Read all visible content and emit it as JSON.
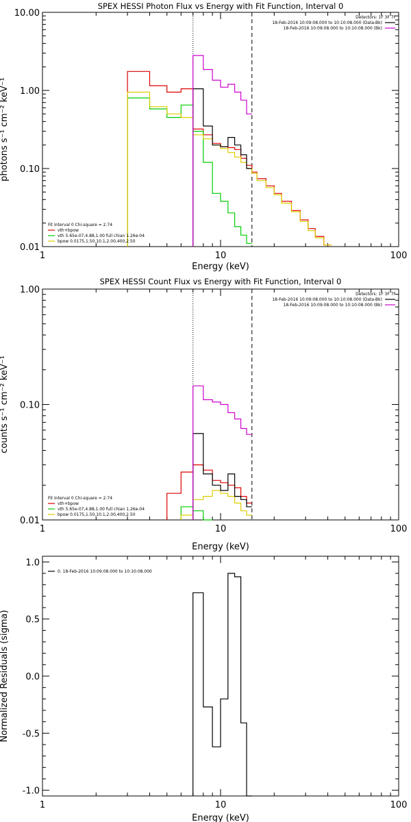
{
  "colors": {
    "data_bk": "#000000",
    "data_bk2": "#cc00cc",
    "vth_bpow": "#dd0000",
    "vth": "#00cc00",
    "bpow": "#ddcc00",
    "fit_range_marker": "#000000"
  },
  "chart_data": [
    {
      "type": "line",
      "title": "SPEX HESSI Photon Flux vs Energy with Fit Function, Interval 0",
      "xlabel": "Energy (keV)",
      "ylabel": "photons s⁻¹ cm⁻² keV⁻¹",
      "xscale": "log",
      "yscale": "log",
      "xlim": [
        1,
        100
      ],
      "ylim": [
        0.01,
        10
      ],
      "xticks": [
        1,
        10,
        100
      ],
      "xtick_labels": [
        "1",
        "10",
        "100"
      ],
      "yticks": [
        0.01,
        0.1,
        1,
        10
      ],
      "ytick_labels": [
        "0.01",
        "0.10",
        "1.00",
        "10.00"
      ],
      "vlines": [
        {
          "x": 7.0,
          "style": "dotted"
        },
        {
          "x": 15.0,
          "style": "dashed"
        }
      ],
      "legend_top": {
        "position": "top-right",
        "header": "Detectors: 1F 3F 7F",
        "entries": [
          {
            "label": "18-Feb-2016 10:09:08.000 to 10:10:08.000 (Data-Bk)",
            "color_key": "data_bk"
          },
          {
            "label": "18-Feb-2016 10:09:08.000 to 10:10:08.000 (Bk)",
            "color_key": "data_bk2"
          }
        ]
      },
      "legend_bottom": {
        "position": "bottom-left",
        "header": "Fit Interval 0   Chi-square = 2.74",
        "entries": [
          {
            "label": "vth+bpow",
            "color_key": "vth_bpow"
          },
          {
            "label": "vth 5.65e-07,4.88,1.00  full chian 1.26e-04",
            "color_key": "vth"
          },
          {
            "label": "bpow 0.0175,1.50,10.1,2.00,400,2.50",
            "color_key": "bpow"
          }
        ]
      },
      "series": [
        {
          "color_key": "vth_bpow",
          "start_edge": 3.0,
          "edges": [
            3.0,
            4.0,
            5.0,
            6.0,
            7.0,
            8.0,
            9.0,
            10.0,
            11.0,
            12.0,
            13.0,
            14.0,
            15.0,
            16.0,
            18.0,
            20.0,
            22.0,
            25.0,
            28.0,
            31.0,
            34.0,
            38.0,
            42.0
          ],
          "values": [
            1.75,
            1.15,
            0.95,
            1.05,
            0.32,
            0.27,
            0.21,
            0.19,
            0.185,
            0.175,
            0.135,
            0.11,
            0.09,
            0.074,
            0.06,
            0.048,
            0.038,
            0.029,
            0.022,
            0.017,
            0.0135,
            0.0105
          ]
        },
        {
          "color_key": "vth",
          "start_edge": 3.0,
          "edges": [
            3.0,
            4.0,
            5.0,
            6.0,
            7.0,
            8.0,
            9.0,
            10.0,
            11.0,
            12.0,
            13.0,
            14.0,
            15.0
          ],
          "values": [
            0.8,
            0.58,
            0.45,
            0.65,
            0.3,
            0.12,
            0.048,
            0.038,
            0.027,
            0.018,
            0.014,
            0.011
          ]
        },
        {
          "color_key": "bpow",
          "start_edge": 3.0,
          "edges": [
            3.0,
            4.0,
            5.0,
            6.0,
            7.0,
            8.0,
            9.0,
            10.0,
            11.0,
            12.0,
            13.0,
            14.0,
            15.0,
            16.0,
            18.0,
            20.0,
            22.0,
            25.0,
            28.0,
            31.0,
            34.0,
            38.0,
            42.0
          ],
          "values": [
            0.95,
            0.62,
            0.5,
            0.45,
            0.27,
            0.24,
            0.2,
            0.18,
            0.16,
            0.14,
            0.12,
            0.1,
            0.087,
            0.07,
            0.057,
            0.046,
            0.036,
            0.028,
            0.021,
            0.016,
            0.013,
            0.0105
          ]
        },
        {
          "color_key": "data_bk",
          "start_edge": 7.0,
          "edges": [
            7.0,
            8.0,
            9.0,
            10.0,
            11.0,
            12.0,
            13.0,
            14.0,
            15.0
          ],
          "values": [
            1.05,
            0.35,
            0.2,
            0.19,
            0.25,
            0.2,
            0.15,
            0.1
          ]
        },
        {
          "color_key": "data_bk2",
          "start_edge": 7.0,
          "edges": [
            7.0,
            8.0,
            9.0,
            10.0,
            11.0,
            12.0,
            13.0,
            14.0,
            15.0
          ],
          "values": [
            2.8,
            1.85,
            1.35,
            1.1,
            1.2,
            0.95,
            0.75,
            0.5
          ]
        }
      ]
    },
    {
      "type": "line",
      "title": "SPEX HESSI Count Flux vs Energy with Fit Function, Interval 0",
      "xlabel": "Energy (keV)",
      "ylabel": "counts s⁻¹ cm⁻² keV⁻¹",
      "xscale": "log",
      "yscale": "log",
      "xlim": [
        1,
        100
      ],
      "ylim": [
        0.01,
        1
      ],
      "xticks": [
        1,
        10,
        100
      ],
      "xtick_labels": [
        "1",
        "10",
        "100"
      ],
      "yticks": [
        0.01,
        0.1,
        1
      ],
      "ytick_labels": [
        "0.01",
        "0.10",
        "1.00"
      ],
      "vlines": [
        {
          "x": 7.0,
          "style": "dotted"
        },
        {
          "x": 15.0,
          "style": "dashed"
        }
      ],
      "legend_top": {
        "position": "top-right",
        "header": "Detectors: 1F 3F 7F",
        "entries": [
          {
            "label": "18-Feb-2016 10:09:08.000 to 10:10:08.000 (Data-Bk)",
            "color_key": "data_bk"
          },
          {
            "label": "18-Feb-2016 10:09:08.000 to 10:10:08.000 (Bk)",
            "color_key": "data_bk2"
          }
        ]
      },
      "legend_bottom": {
        "position": "bottom-left",
        "header": "Fit Interval 0   Chi-square = 2.74",
        "entries": [
          {
            "label": "vth+bpow",
            "color_key": "vth_bpow"
          },
          {
            "label": "vth 5.65e-07,4.88,1.00  full chian 1.26e-04",
            "color_key": "vth"
          },
          {
            "label": "bpow 0.0175,1.50,10.1,2.00,400,2.50",
            "color_key": "bpow"
          }
        ]
      },
      "series": [
        {
          "color_key": "vth_bpow",
          "start_edge": 5.0,
          "edges": [
            5.0,
            6.0,
            7.0,
            8.0,
            9.0,
            10.0,
            11.0,
            12.0,
            13.0,
            14.0,
            15.0
          ],
          "values": [
            0.017,
            0.026,
            0.03,
            0.027,
            0.022,
            0.021,
            0.02,
            0.019,
            0.016,
            0.014
          ]
        },
        {
          "color_key": "vth",
          "start_edge": 6.0,
          "edges": [
            6.0,
            7.0,
            8.0,
            9.0
          ],
          "values": [
            0.013,
            0.012,
            0.01
          ]
        },
        {
          "color_key": "bpow",
          "start_edge": 6.0,
          "edges": [
            6.0,
            7.0,
            8.0,
            9.0,
            10.0,
            11.0,
            12.0,
            13.0,
            14.0,
            15.0
          ],
          "values": [
            0.011,
            0.015,
            0.016,
            0.018,
            0.017,
            0.016,
            0.014,
            0.012,
            0.011
          ]
        },
        {
          "color_key": "data_bk",
          "start_edge": 7.0,
          "edges": [
            7.0,
            8.0,
            9.0,
            10.0,
            11.0,
            12.0,
            13.0,
            14.0,
            15.0
          ],
          "values": [
            0.056,
            0.025,
            0.02,
            0.018,
            0.025,
            0.016,
            0.015,
            0.013
          ]
        },
        {
          "color_key": "data_bk2",
          "start_edge": 7.0,
          "edges": [
            7.0,
            8.0,
            9.0,
            10.0,
            11.0,
            12.0,
            13.0,
            14.0,
            15.0
          ],
          "values": [
            0.145,
            0.11,
            0.105,
            0.1,
            0.085,
            0.075,
            0.062,
            0.055
          ]
        }
      ]
    },
    {
      "type": "line",
      "title": "",
      "xlabel": "Energy (keV)",
      "ylabel": "Normalized Residuals (sigma)",
      "xscale": "log",
      "yscale": "linear",
      "xlim": [
        1,
        100
      ],
      "ylim": [
        -1.05,
        1.05
      ],
      "xticks": [
        1,
        10,
        100
      ],
      "xtick_labels": [
        "1",
        "10",
        "100"
      ],
      "yticks": [
        -1.0,
        -0.5,
        0.0,
        0.5,
        1.0
      ],
      "ytick_labels": [
        "-1.0",
        "-0.5",
        "0.0",
        "0.5",
        "1.0"
      ],
      "legend_top": {
        "position": "top-left",
        "header": "",
        "entries": [
          {
            "label": "0. 18-Feb-2016 10:09:08.000 to 10:10:08.000",
            "color_key": "data_bk"
          }
        ]
      },
      "series": [
        {
          "color_key": "data_bk",
          "start_edge": 7.0,
          "baseline": -1.05,
          "edges": [
            7.0,
            8.0,
            9.0,
            10.0,
            11.0,
            12.0,
            13.0,
            14.0,
            15.0
          ],
          "values": [
            0.73,
            -0.27,
            -0.62,
            -0.2,
            0.9,
            0.87,
            -0.41,
            -1.05
          ]
        }
      ]
    }
  ]
}
